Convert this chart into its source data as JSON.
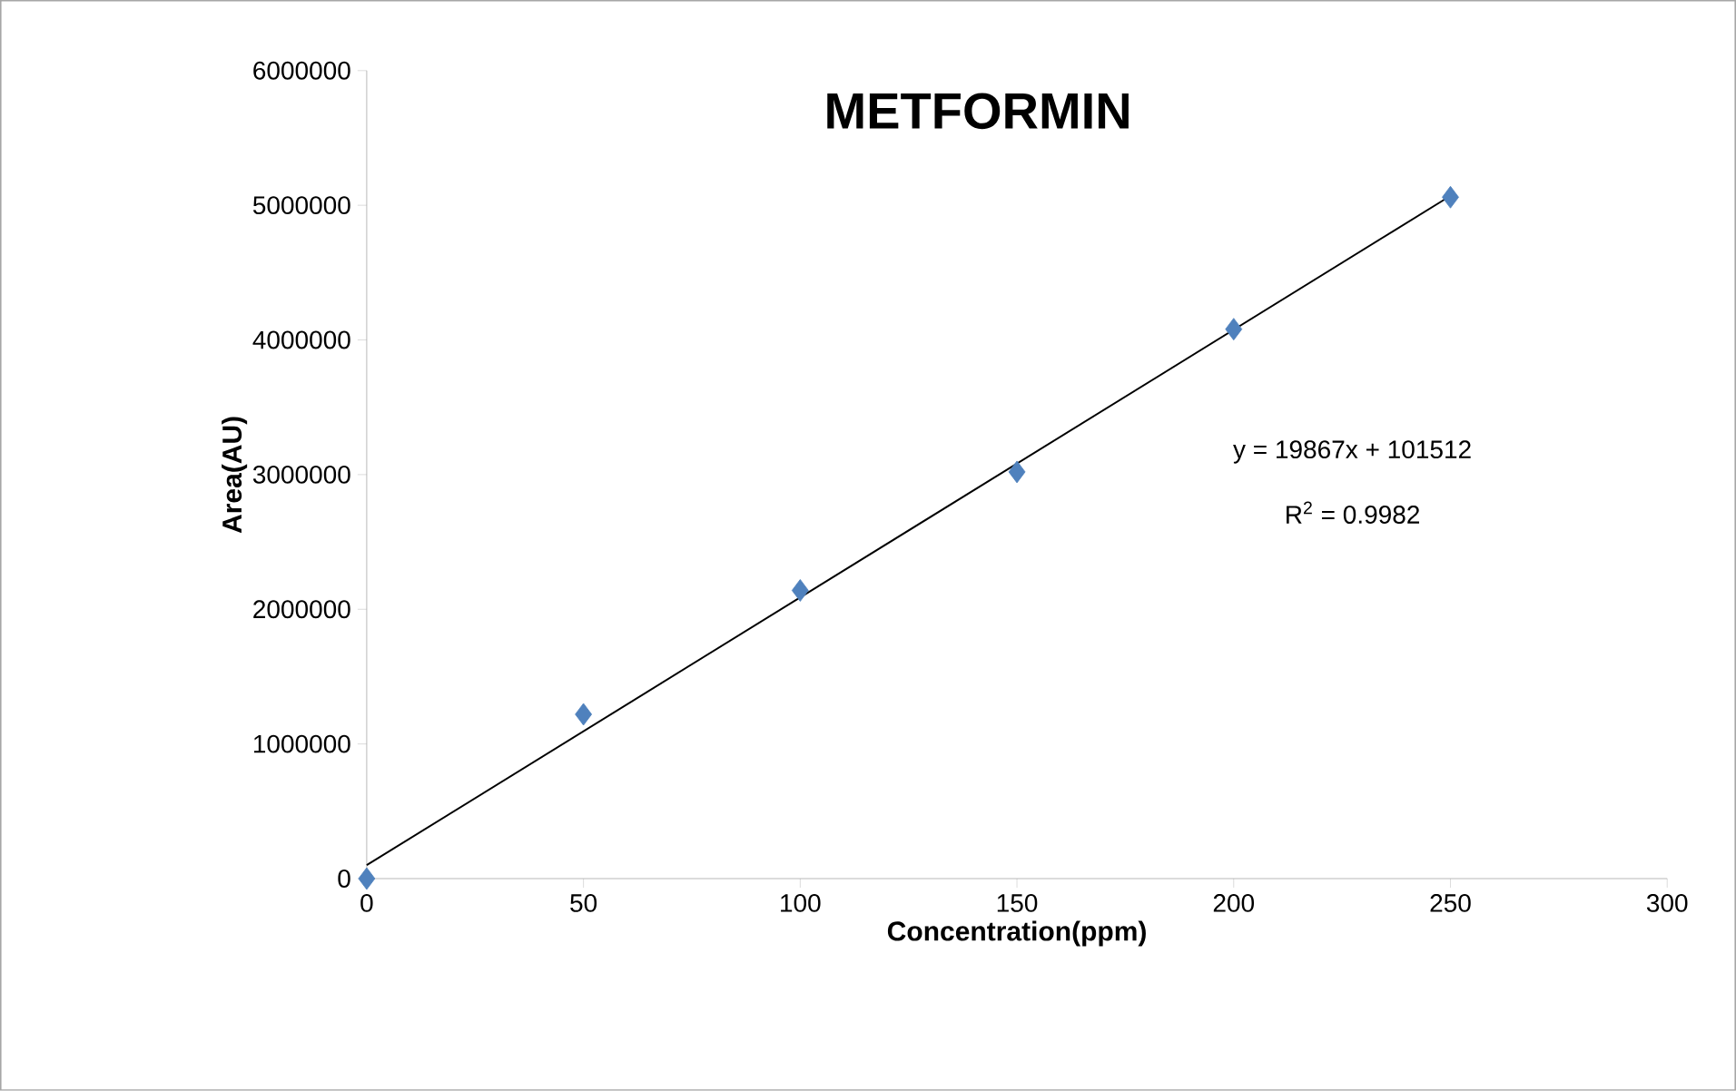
{
  "chart_data": {
    "type": "scatter",
    "title": "METFORMIN",
    "xlabel": "Concentration(ppm)",
    "ylabel": "Area(AU)",
    "x": [
      0,
      50,
      100,
      150,
      200,
      250
    ],
    "series": [
      {
        "color": "#4f81bd",
        "marker": "diamond",
        "values": [
          0,
          1220000,
          2140000,
          3020000,
          4080000,
          5060000
        ]
      },
      {
        "type": "line",
        "color": "#000000",
        "marker": "none",
        "line_style": "solid",
        "x": [
          0,
          250
        ],
        "values": [
          100000,
          5070000
        ]
      }
    ],
    "xlim": [
      0,
      300
    ],
    "xticks": [
      0,
      50,
      100,
      150,
      200,
      250,
      300
    ],
    "ylim": [
      0,
      6000000
    ],
    "yticks": [
      0,
      1000000,
      2000000,
      3000000,
      4000000,
      5000000,
      6000000
    ],
    "grid": false,
    "annotations": [
      "y = 19867x + 101512",
      "R$^{2}$ = 0.9982"
    ]
  }
}
